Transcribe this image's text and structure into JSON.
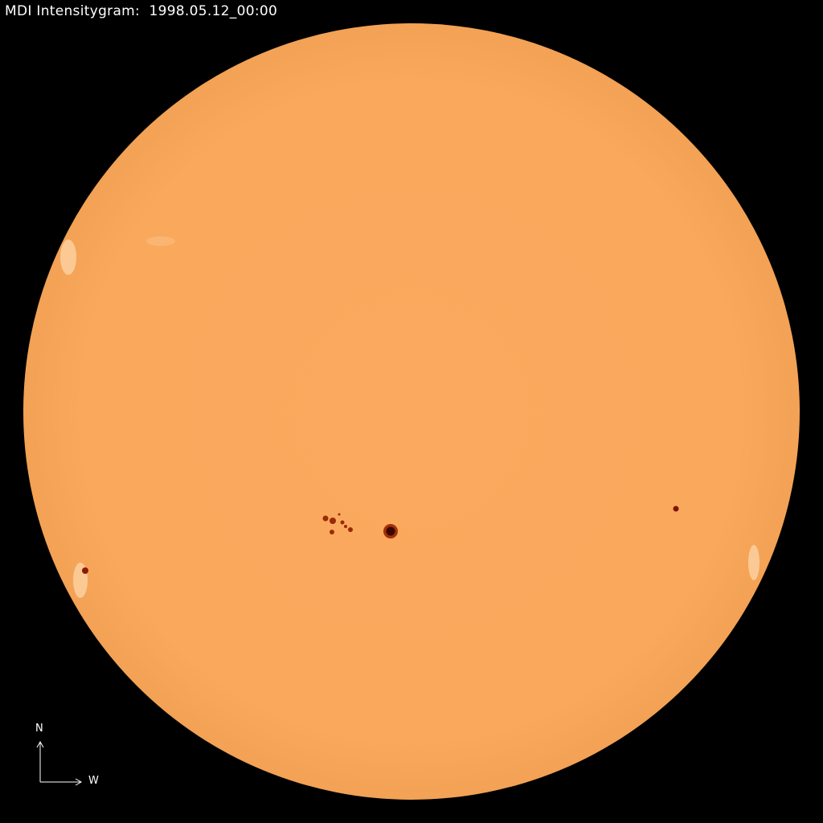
{
  "title": "MDI Intensitygram:  1998.05.12_00:00",
  "compass": {
    "north": "N",
    "west": "W"
  },
  "colors": {
    "background": "#000000",
    "disk": "#F9A85C",
    "sunspot": "#8a1a05",
    "umbra": "#3a0500",
    "facula": "#FCD9B0"
  }
}
